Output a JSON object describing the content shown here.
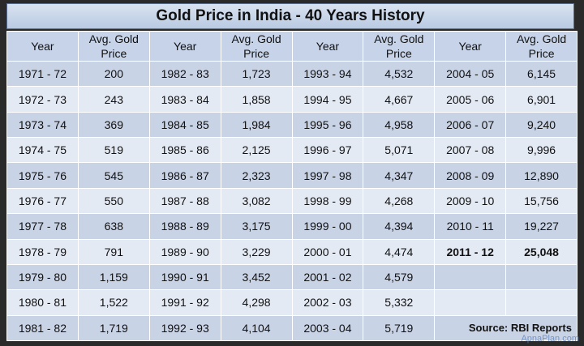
{
  "title": "Gold Price in India - 40 Years History",
  "headers": {
    "year": "Year",
    "price_line1": "Avg. Gold",
    "price_line2": "Price"
  },
  "rows": [
    [
      [
        "1971 - 72",
        "200"
      ],
      [
        "1982 - 83",
        "1,723"
      ],
      [
        "1993 - 94",
        "4,532"
      ],
      [
        "2004 - 05",
        "6,145"
      ]
    ],
    [
      [
        "1972 - 73",
        "243"
      ],
      [
        "1983 - 84",
        "1,858"
      ],
      [
        "1994 - 95",
        "4,667"
      ],
      [
        "2005 - 06",
        "6,901"
      ]
    ],
    [
      [
        "1973 - 74",
        "369"
      ],
      [
        "1984 - 85",
        "1,984"
      ],
      [
        "1995 - 96",
        "4,958"
      ],
      [
        "2006 - 07",
        "9,240"
      ]
    ],
    [
      [
        "1974 - 75",
        "519"
      ],
      [
        "1985 - 86",
        "2,125"
      ],
      [
        "1996 - 97",
        "5,071"
      ],
      [
        "2007 - 08",
        "9,996"
      ]
    ],
    [
      [
        "1975 - 76",
        "545"
      ],
      [
        "1986 - 87",
        "2,323"
      ],
      [
        "1997 - 98",
        "4,347"
      ],
      [
        "2008 - 09",
        "12,890"
      ]
    ],
    [
      [
        "1976 - 77",
        "550"
      ],
      [
        "1987 - 88",
        "3,082"
      ],
      [
        "1998 - 99",
        "4,268"
      ],
      [
        "2009 - 10",
        "15,756"
      ]
    ],
    [
      [
        "1977 - 78",
        "638"
      ],
      [
        "1988 - 89",
        "3,175"
      ],
      [
        "1999 - 00",
        "4,394"
      ],
      [
        "2010 - 11",
        "19,227"
      ]
    ],
    [
      [
        "1978 - 79",
        "791"
      ],
      [
        "1989 - 90",
        "3,229"
      ],
      [
        "2000 - 01",
        "4,474"
      ],
      [
        "2011 - 12",
        "25,048"
      ]
    ],
    [
      [
        "1979 - 80",
        "1,159"
      ],
      [
        "1990 - 91",
        "3,452"
      ],
      [
        "2001 - 02",
        "4,579"
      ],
      [
        "",
        ""
      ]
    ],
    [
      [
        "1980 - 81",
        "1,522"
      ],
      [
        "1991 - 92",
        "4,298"
      ],
      [
        "2002 - 03",
        "5,332"
      ],
      [
        "",
        ""
      ]
    ],
    [
      [
        "1981 - 82",
        "1,719"
      ],
      [
        "1992 - 93",
        "4,104"
      ],
      [
        "2003 - 04",
        "5,719"
      ],
      [
        "",
        ""
      ]
    ]
  ],
  "highlight_row": 7,
  "highlight_col": 3,
  "source": "Source: RBI Reports",
  "watermark": "ApnaPlan.com",
  "colors": {
    "header_bg": "#c6d3e8",
    "row_dark": "#c9d3e6",
    "row_light": "#e4eaf4",
    "title_bg": "#c9d6ea"
  }
}
